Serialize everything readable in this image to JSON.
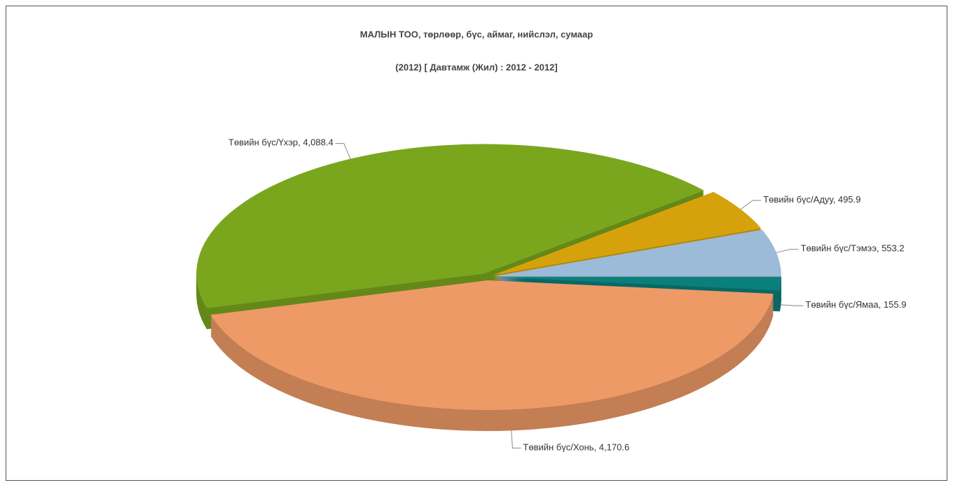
{
  "chart_data": {
    "type": "pie3d",
    "title": "МАЛЫН ТОО, төрлөөр, бүс,  аймаг, нийслэл, сумаар",
    "subtitle": "(2012)  [ Давтамж (Жил) : 2012 - 2012]",
    "categories": [
      "Төвийн бүс/Ямаа",
      "Төвийн бүс/Хонь",
      "Төвийн бүс/Үхэр",
      "Төвийн бүс/Адуу",
      "Төвийн бүс/Тэмээ"
    ],
    "values": [
      155.9,
      4170.6,
      4088.4,
      495.9,
      553.2
    ],
    "value_labels": [
      "155.9",
      "4,170.6",
      "4,088.4",
      "495.9",
      "553.2"
    ],
    "colors": [
      "#0b7f7b",
      "#ee9a66",
      "#7aa61e",
      "#d6a20c",
      "#9bbbd8"
    ]
  }
}
